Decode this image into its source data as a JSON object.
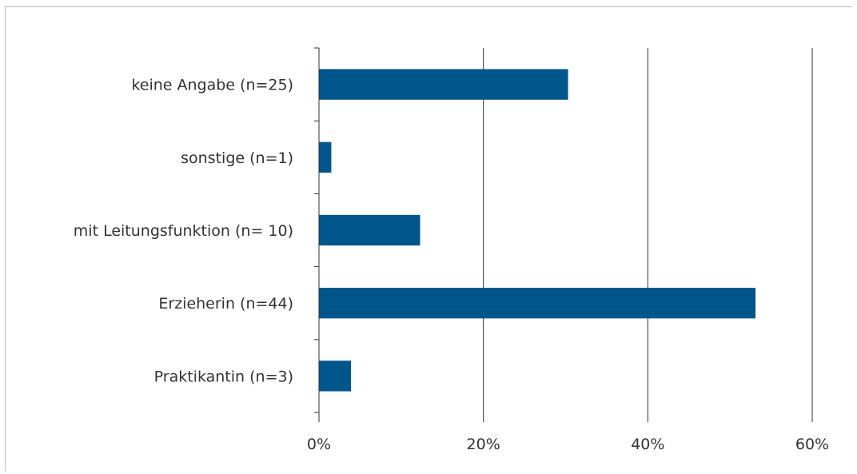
{
  "chart_data": {
    "type": "bar",
    "orientation": "horizontal",
    "categories": [
      "keine Angabe (n=25)",
      "sonstige (n=1)",
      "mit Leitungsfunktion (n= 10)",
      "Erzieherin (n=44)",
      "Praktikantin (n=3)"
    ],
    "values": [
      30.3,
      1.5,
      12.3,
      53.1,
      3.9
    ],
    "xlim": [
      0,
      60
    ],
    "x_ticks": [
      "0%",
      "20%",
      "40%",
      "60%"
    ],
    "grid": true,
    "bar_color": "#00558a"
  }
}
